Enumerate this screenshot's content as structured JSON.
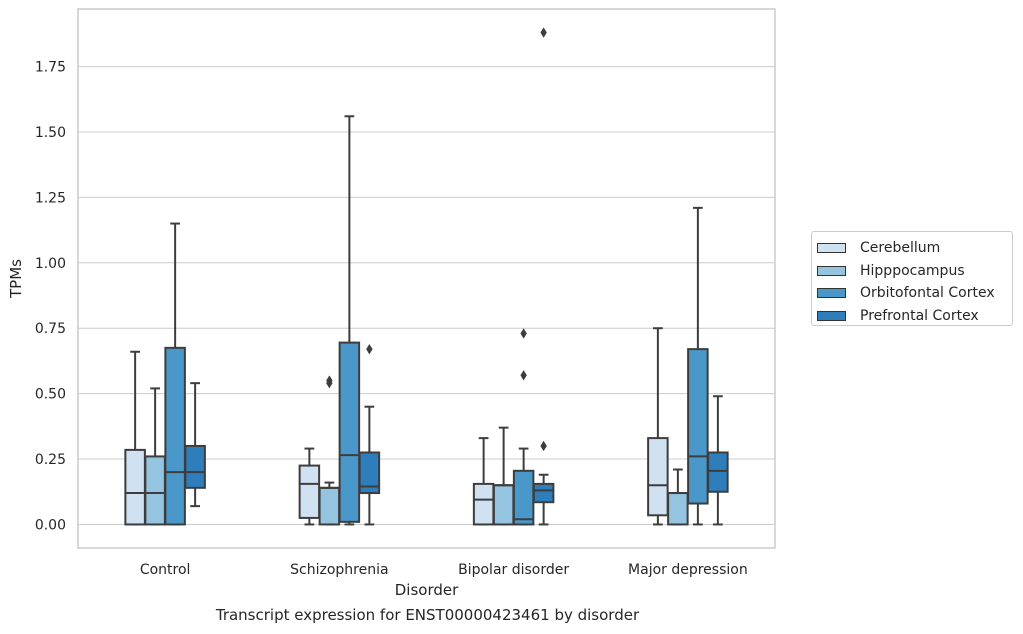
{
  "caption": "Transcript expression for ENST00000423461 by disorder",
  "chart_data": {
    "type": "box",
    "xlabel": "Disorder",
    "ylabel": "TPMs",
    "ylim": [
      -0.09,
      1.97
    ],
    "yticks": [
      0.0,
      0.25,
      0.5,
      0.75,
      1.0,
      1.25,
      1.5,
      1.75
    ],
    "ytick_labels": [
      "0.00",
      "0.25",
      "0.50",
      "0.75",
      "1.00",
      "1.25",
      "1.50",
      "1.75"
    ],
    "grid": "horizontal",
    "legend_position": "right",
    "categories": [
      "Control",
      "Schizophrenia",
      "Bipolar disorder",
      "Major depression"
    ],
    "series": [
      {
        "name": "Cerebellum",
        "color": "#d0e1f2",
        "boxes": [
          {
            "whisker_low": 0.0,
            "q1": 0.0,
            "median": 0.12,
            "q3": 0.285,
            "whisker_high": 0.66,
            "outliers": []
          },
          {
            "whisker_low": 0.0,
            "q1": 0.025,
            "median": 0.155,
            "q3": 0.225,
            "whisker_high": 0.29,
            "outliers": []
          },
          {
            "whisker_low": 0.0,
            "q1": 0.0,
            "median": 0.095,
            "q3": 0.155,
            "whisker_high": 0.33,
            "outliers": []
          },
          {
            "whisker_low": 0.0,
            "q1": 0.035,
            "median": 0.15,
            "q3": 0.33,
            "whisker_high": 0.75,
            "outliers": []
          }
        ]
      },
      {
        "name": "Hipppocampus",
        "color": "#94c4df",
        "boxes": [
          {
            "whisker_low": 0.0,
            "q1": 0.0,
            "median": 0.12,
            "q3": 0.26,
            "whisker_high": 0.52,
            "outliers": []
          },
          {
            "whisker_low": 0.0,
            "q1": 0.0,
            "median": 0.14,
            "q3": 0.14,
            "whisker_high": 0.16,
            "outliers": [
              0.54,
              0.55
            ]
          },
          {
            "whisker_low": 0.0,
            "q1": 0.0,
            "median": 0.15,
            "q3": 0.15,
            "whisker_high": 0.37,
            "outliers": []
          },
          {
            "whisker_low": 0.0,
            "q1": 0.0,
            "median": 0.12,
            "q3": 0.12,
            "whisker_high": 0.21,
            "outliers": []
          }
        ]
      },
      {
        "name": "Orbitofontal Cortex",
        "color": "#4a98c9",
        "boxes": [
          {
            "whisker_low": 0.0,
            "q1": 0.0,
            "median": 0.2,
            "q3": 0.675,
            "whisker_high": 1.15,
            "outliers": []
          },
          {
            "whisker_low": 0.0,
            "q1": 0.01,
            "median": 0.265,
            "q3": 0.695,
            "whisker_high": 1.56,
            "outliers": []
          },
          {
            "whisker_low": 0.0,
            "q1": 0.0,
            "median": 0.02,
            "q3": 0.205,
            "whisker_high": 0.29,
            "outliers": [
              0.57,
              0.73
            ]
          },
          {
            "whisker_low": 0.0,
            "q1": 0.08,
            "median": 0.26,
            "q3": 0.67,
            "whisker_high": 1.21,
            "outliers": []
          }
        ]
      },
      {
        "name": "Prefrontal Cortex",
        "color": "#2e7ebc",
        "boxes": [
          {
            "whisker_low": 0.07,
            "q1": 0.14,
            "median": 0.2,
            "q3": 0.3,
            "whisker_high": 0.54,
            "outliers": []
          },
          {
            "whisker_low": 0.0,
            "q1": 0.12,
            "median": 0.145,
            "q3": 0.275,
            "whisker_high": 0.45,
            "outliers": [
              0.67
            ]
          },
          {
            "whisker_low": 0.0,
            "q1": 0.085,
            "median": 0.13,
            "q3": 0.155,
            "whisker_high": 0.19,
            "outliers": [
              0.3,
              1.88
            ]
          },
          {
            "whisker_low": 0.0,
            "q1": 0.125,
            "median": 0.205,
            "q3": 0.275,
            "whisker_high": 0.49,
            "outliers": []
          }
        ]
      }
    ]
  }
}
